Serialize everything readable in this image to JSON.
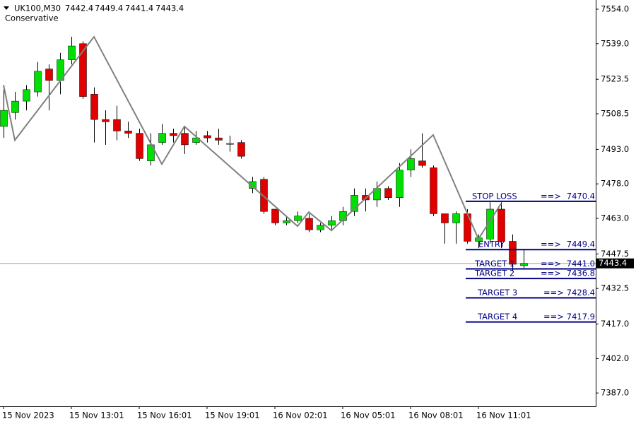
{
  "chart_data": {
    "type": "candlestick",
    "symbol": "UK100,M30",
    "indicator": "Conservative",
    "categories": [
      "15 Nov 2023",
      null,
      null,
      null,
      null,
      null,
      "15 Nov 13:01",
      null,
      null,
      null,
      null,
      null,
      "15 Nov 16:01",
      null,
      null,
      null,
      null,
      null,
      "15 Nov 19:01",
      null,
      null,
      null,
      null,
      null,
      "16 Nov 02:01",
      null,
      null,
      null,
      null,
      null,
      "16 Nov 05:01",
      null,
      null,
      null,
      null,
      null,
      "16 Nov 08:01",
      null,
      null,
      null,
      null,
      null,
      "16 Nov 11:01",
      null,
      null,
      null,
      null
    ],
    "open": [
      7503,
      7509,
      7514,
      7518,
      7528,
      7523,
      7532,
      7539,
      7517,
      7506,
      7506,
      7501,
      7500,
      7488,
      7496,
      7500,
      7500,
      7496,
      7499,
      7498,
      7495.2,
      7496,
      7476,
      7480,
      7467,
      7461,
      7462,
      7463,
      7458,
      7460,
      7462,
      7466,
      7473,
      7471,
      7476,
      7472,
      7484,
      7488,
      7485,
      7465,
      7461,
      7465,
      7453,
      7454,
      7467,
      7453,
      7442.4
    ],
    "high": [
      7521,
      7518,
      7521,
      7531,
      7530,
      7535,
      7542,
      7540,
      7520,
      7510,
      7512,
      7505,
      7502,
      7500,
      7504,
      7502,
      7503,
      7501,
      7501,
      7502,
      7499,
      7497,
      7481,
      7481,
      7467,
      7464,
      7466,
      7465,
      7461,
      7464,
      7468,
      7476,
      7476,
      7479,
      7477,
      7487,
      7493,
      7500,
      7486,
      7465,
      7466,
      7467,
      7456,
      7470,
      7470,
      7456,
      7449.4
    ],
    "low": [
      7498,
      7506,
      7510,
      7516,
      7510,
      7517,
      7530,
      7515,
      7496,
      7495,
      7497,
      7498,
      7488,
      7486,
      7495,
      7496,
      7491,
      7495,
      7496,
      7495,
      7492,
      7489,
      7474,
      7465,
      7460,
      7460,
      7461,
      7457,
      7457,
      7458,
      7460,
      7464,
      7466,
      7468,
      7471,
      7468,
      7481,
      7485,
      7464,
      7452,
      7452,
      7452,
      7450,
      7452,
      7450,
      7440,
      7441.4
    ],
    "close": [
      7510,
      7514,
      7519,
      7527,
      7523,
      7532,
      7538,
      7516,
      7506,
      7505,
      7501,
      7500,
      7489,
      7495,
      7500,
      7499,
      7495,
      7498,
      7498,
      7497,
      7495.6,
      7490,
      7479,
      7466,
      7461,
      7462,
      7464,
      7458,
      7460,
      7462,
      7466,
      7473,
      7471,
      7476,
      7472,
      7484,
      7489,
      7486,
      7465,
      7461,
      7465,
      7453,
      7454.5,
      7467,
      7453,
      7443,
      7443.4
    ],
    "up_color": "#00e000",
    "down_color": "#e00000",
    "zigzag": {
      "color": "#808080",
      "x": [
        0,
        1,
        8,
        14,
        16,
        26,
        27,
        29,
        38,
        42,
        44
      ],
      "values": [
        7521,
        7497,
        7542,
        7486.6,
        7503,
        7459.6,
        7465.7,
        7457.7,
        7499.3,
        7454,
        7469.4
      ]
    },
    "levels": {
      "color": "#000080",
      "arrow": "==>",
      "names": [
        "STOP LOSS",
        "ENTRY",
        "TARGET 1",
        "TARGET 2",
        "TARGET 3",
        "TARGET 4"
      ],
      "values": [
        7470.4,
        7449.4,
        7441.0,
        7436.8,
        7428.4,
        7417.9
      ],
      "value_labels": [
        "7470.4",
        "7449.4",
        "7441.0",
        "7436.8",
        "7428.4",
        "7417.9"
      ]
    },
    "ylim": [
      7381.2,
      7558.0
    ],
    "yticks": [
      {
        "value": 7554.0,
        "label": "7554.0"
      },
      {
        "value": 7539.0,
        "label": "7539.0"
      },
      7523.5,
      7508.5,
      {
        "value": 7493.0,
        "label": "7493.0"
      },
      {
        "value": 7478.0,
        "label": "7478.0"
      },
      {
        "value": 7463.0,
        "label": "7463.0"
      },
      7447.5,
      7432.5,
      {
        "value": 7417.0,
        "label": "7417.0"
      },
      {
        "value": 7402.0,
        "label": "7402.0"
      },
      {
        "value": 7387.0,
        "label": "7387.0"
      }
    ]
  }
}
